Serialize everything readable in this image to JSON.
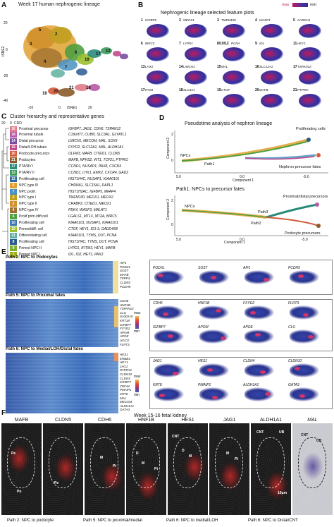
{
  "panel_a": {
    "letter": "A",
    "title": "Week 17 human nephrogenic lineage",
    "ylabel": "tSNE2",
    "xlabel": "tSNE1",
    "yticks": [
      "20",
      "0",
      "-20",
      "-40"
    ],
    "xticks": [
      "-20",
      "0",
      "20"
    ],
    "clusters": [
      "1",
      "2",
      "3",
      "4",
      "5",
      "6",
      "7",
      "8",
      "9",
      "10",
      "11",
      "12",
      "13",
      "14",
      "15",
      "16",
      "17",
      "18",
      "19",
      "20",
      "21"
    ]
  },
  "panel_b": {
    "letter": "B",
    "title": "Nephrogenic lineage selected feature plots",
    "max_label": "max",
    "min_label": "min",
    "plots": [
      [
        "1",
        "IGFBP5"
      ],
      [
        "2",
        "MEOX1"
      ],
      [
        "3",
        "TMEM100"
      ],
      [
        "4",
        "WASF3"
      ],
      [
        "5",
        "CHRNA1"
      ],
      [
        "6",
        "BIRC5"
      ],
      [
        "7",
        "LYPD1"
      ],
      [
        "8/10/12",
        "PCNA"
      ],
      [
        "9",
        "ID1"
      ],
      [
        "11",
        "HEY1"
      ],
      [
        "13",
        "LHX1"
      ],
      [
        "14",
        "LIMCH1"
      ],
      [
        "15",
        "MAL"
      ],
      [
        "16",
        "SLC12A1"
      ],
      [
        "17",
        "TSPAN12"
      ],
      [
        "17",
        "PAX8"
      ],
      [
        "18",
        "SLC3A1"
      ],
      [
        "19",
        "CTGF"
      ],
      [
        "20",
        "MAFB"
      ],
      [
        "21",
        "PTPRO"
      ]
    ]
  },
  "panel_c": {
    "letter": "C",
    "title": "Cluster hierarchy and representative genes",
    "scale_ticks": [
      "0",
      "20"
    ],
    "scale_label": "CDD",
    "rows": [
      [
        "16",
        "Proximal precursor",
        "IGFBP7, JAG1, CDH6, TSPAN12",
        "#e07a8a"
      ],
      [
        "18",
        "Proximal tubule",
        "C19orf77, CUBN, SLC3A1, GLYATL1",
        "#b85aa6"
      ],
      [
        "14",
        "Distal precursor",
        "LIMCH1, MECOM, MAL, SOX9",
        "#7a4da0"
      ],
      [
        "15",
        "Distal/LOH tubule",
        "FXYD2, SLC12A1, MAL, ALDH1A1",
        "#c24a8c"
      ],
      [
        "20",
        "Podocyte precursor",
        "OLFM3, MAFB, CITED1, CLDN5",
        "#d55a3a"
      ],
      [
        "21",
        "Podocytes",
        "MAFB, NPHS2, WT1, TCF21, PTPRO",
        "#8a5a2a"
      ],
      [
        "17",
        "PTA/RV I",
        "CCND1, NUSAP1, PAX8, CXCR4",
        "#2a8a7a"
      ],
      [
        "13",
        "PTA/RV II",
        "CCND1, LHX1, EMX2, CXCR4, GAD2",
        "#3a9a5a"
      ],
      [
        "12",
        "Proliferating cell",
        "HIST1H4C, NUSAP1, KIAA0101",
        "#2a6aa0"
      ],
      [
        "5",
        "NPC type III",
        "CHRNA1, SLC15A1, DAPL1",
        "#e0a030"
      ],
      [
        "7",
        "NPC prolif.",
        "HIST1H2AC, IGFBP5, MFAP4",
        "#4a90c0"
      ],
      [
        "2",
        "NPC type I",
        "TMEM100, MEOX1, MEOX2",
        "#c0a020"
      ],
      [
        "3",
        "NPC type II",
        "CRABP2, CITED1, MEOX1",
        "#d0902a"
      ],
      [
        "4",
        "NPC type IV",
        "PDK4, WASF3, MALAT1",
        "#a07030"
      ],
      [
        "6",
        "Prolif prim./diff.cell",
        "LGALS1, MT1X, MT2A, BIRC5",
        "#50a040"
      ],
      [
        "10",
        "Proliferating cell",
        "KIAA0101, NUSAP1, KIAA0101",
        "#3a7ab0"
      ],
      [
        "19",
        "Primed/diff. cell",
        "CTGF, HEY1, ID1-3, GADD45B",
        "#9ac030"
      ],
      [
        "11",
        "Differentiating cell",
        "KIAA0101, TYMS, DUT, PCNA",
        "#60b0a0"
      ],
      [
        "8",
        "Proliferating cell",
        "HIST1H4C, TYMS, DUT, PCNA",
        "#2a5a90"
      ],
      [
        "9",
        "Primed NPC II",
        "LYPD1, IFITM3, HEY1, MAFB",
        "#7ab030"
      ],
      [
        "1",
        "Primed NPC I",
        "ID1, ID2, HEY1, PAX2",
        "#a0b020"
      ]
    ]
  },
  "panel_d": {
    "letter": "D",
    "title": "Pseudotime analysis of nephron lineage",
    "top": {
      "ylabel": "Component 2",
      "xlabel": "Component 1",
      "xticks": [
        "5.0",
        "0.0",
        "-5.0"
      ],
      "yticks": [
        "2",
        "0"
      ],
      "labels": [
        "Proliferating cells",
        "NPCs",
        "Path1",
        "Nephron precursor fates"
      ]
    },
    "bottom_title": "Path1: NPCs to precursor fates",
    "bottom": {
      "ylabel": "Component 2",
      "xlabel": "Component 1",
      "xticks": [
        "5.0",
        "0.0",
        "-5.0"
      ],
      "yticks": [
        "2",
        "0"
      ],
      "labels": [
        "NPCs",
        "Proximal/distal precursors",
        "Path3",
        "Path2",
        "Podocyte precursors"
      ]
    }
  },
  "panel_e": {
    "letter": "E",
    "max_label": "max",
    "min_label": "min",
    "heatmaps": [
      {
        "title": "Path 2: NPC to Podocytes",
        "genes": [
          "AIF1",
          "PODXL",
          "SOST",
          "MAFB",
          "TPPP3",
          "CLDN5",
          "PCDH9"
        ]
      },
      {
        "title": "Path 5: NPC to Proximal fates",
        "genes": [
          "CDH6",
          "HNF1B",
          "TSPAN12",
          "CLU",
          "S100A10",
          "KRT18",
          "IGFBP7",
          "FXYD2",
          "APOM",
          "APOE",
          "UGCG",
          "FLRT3"
        ]
      },
      {
        "title": "Path 6: NPC to Medial/LOH/Distal fates",
        "genes": [
          "HES1",
          "ERBB4",
          "HEY1",
          "JAG1",
          "PAPPA2",
          "CLDN10",
          "CLDN4",
          "IGFBP7",
          "ZNF44",
          "PMAIP1",
          "KRT8",
          "MAL",
          "MECOM",
          "ALDH1A1",
          "GATA3"
        ]
      }
    ],
    "feature_groups": [
      [
        "PODXL",
        "SOST",
        "AIF1",
        "PCDH9"
      ],
      [
        "CDH6",
        "HNF1B",
        "FXYD2",
        "FLRT3"
      ],
      [
        "IGFBP7",
        "APOM",
        "APOE",
        "CLU"
      ],
      [
        "JAG1",
        "HES1",
        "CLDN4",
        "CLDN10"
      ],
      [
        "KRT8",
        "PMAIP1",
        "ALDH1A1",
        "GATA3"
      ]
    ]
  },
  "panel_f": {
    "letter": "F",
    "title": "Week 15-16 fetal kidney",
    "images": [
      "MAFB",
      "CLDN5",
      "CDH6",
      "HNF1B",
      "HES1",
      "JAG1",
      "ALDH1A1",
      "MAL"
    ],
    "annotations": {
      "pe": "Pe",
      "po": "Po",
      "m": "M",
      "pt": "Pt",
      "d": "D",
      "cnt": "CNT",
      "ub": "UB",
      "scale": "10μm"
    },
    "paths": [
      "Path 2: NPC to podocyte",
      "Path 5: NPC to proximal/medial",
      "Path 6: NPC to medial/LOH",
      "Path 6: NPC to Distal/CNT"
    ]
  },
  "colors": {
    "max": "#c2185b",
    "min": "#2b2fa0"
  }
}
